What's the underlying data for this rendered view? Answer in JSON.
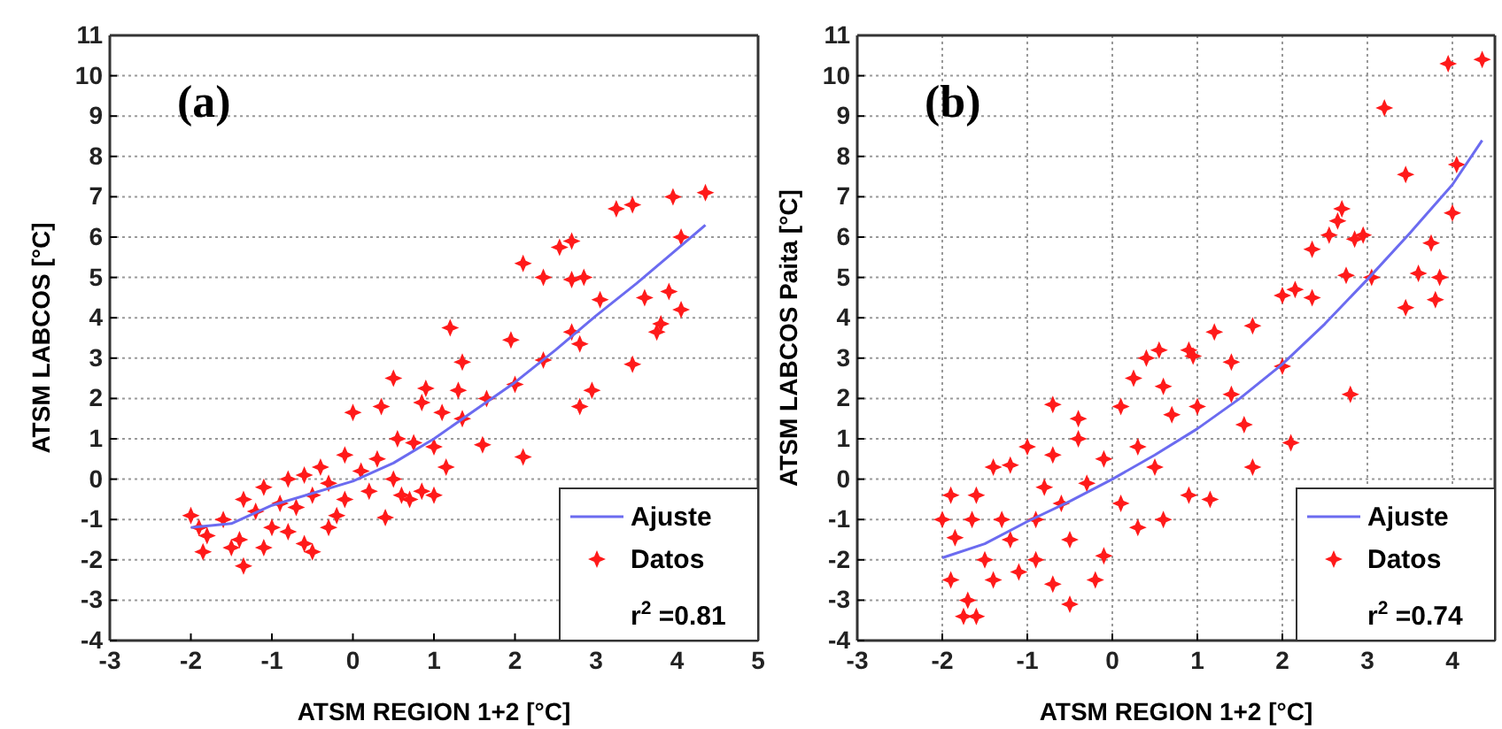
{
  "chart_data": [
    {
      "type": "scatter",
      "xlabel": "ATSM REGION 1+2 [°C]",
      "ylabel": "ATSM LABCOS [°C]",
      "annotations": [
        "(a)",
        "r$^{2}$ =0.81"
      ],
      "xlim": [
        -3,
        5
      ],
      "ylim": [
        -4,
        11
      ],
      "xticks": [
        -3,
        -2,
        -1,
        0,
        1,
        2,
        3,
        4,
        5
      ],
      "yticks": [
        -4,
        -3,
        -2,
        -1,
        0,
        1,
        2,
        3,
        4,
        5,
        6,
        7,
        8,
        9,
        10,
        11
      ],
      "grid": "y",
      "legend": "bottom right",
      "series": [
        {
          "name": "Ajuste",
          "type": "line",
          "color": "#6b6bf0",
          "line_style": "solid",
          "x": [
            -2,
            -1.5,
            -1,
            0,
            0.5,
            1,
            1.5,
            2,
            2.5,
            3,
            3.5,
            4,
            4.35
          ],
          "values": [
            -1.2,
            -1.1,
            -0.65,
            -0.05,
            0.4,
            1.0,
            1.7,
            2.4,
            3.2,
            4.05,
            4.85,
            5.7,
            6.3
          ]
        },
        {
          "name": "Datos",
          "marker": "star",
          "color": "#ff1a1a",
          "x": [
            4.35,
            3.95,
            3.45,
            3.25,
            4.05,
            2.7,
            2.55,
            2.1,
            2.35,
            2.7,
            2.85,
            3.05,
            3.6,
            3.9,
            4.05,
            3.8,
            3.75,
            2.7,
            2.8,
            1.95,
            3.45,
            2.35,
            1.2,
            1.35,
            2.0,
            2.95,
            2.8,
            1.65,
            1.3,
            0.5,
            0.9,
            0.0,
            0.35,
            0.85,
            1.1,
            1.35,
            1.6,
            2.1,
            1.15,
            1.0,
            0.85,
            0.7,
            0.4,
            0.55,
            0.75,
            1.0,
            0.3,
            0.1,
            -0.1,
            -0.3,
            -0.5,
            -0.7,
            -0.9,
            -1.0,
            -1.2,
            -1.35,
            -1.4,
            -1.35,
            -1.5,
            -1.6,
            -1.8,
            -1.85,
            -2.0,
            -1.9,
            -0.6,
            -0.5,
            -0.8,
            -0.2,
            -0.4,
            -0.6,
            -1.1,
            0.2,
            0.5,
            -0.8,
            -0.3,
            -1.1,
            0.6,
            -0.1
          ],
          "values": [
            7.1,
            7.0,
            6.8,
            6.7,
            6.0,
            5.9,
            5.75,
            5.35,
            5.0,
            4.95,
            5.0,
            4.45,
            4.5,
            4.65,
            4.2,
            3.85,
            3.65,
            3.65,
            3.35,
            3.45,
            2.85,
            2.95,
            3.75,
            2.9,
            2.35,
            2.2,
            1.8,
            2.0,
            2.2,
            2.5,
            2.25,
            1.65,
            1.8,
            1.9,
            1.65,
            1.5,
            0.85,
            0.55,
            0.3,
            -0.4,
            -0.3,
            -0.5,
            -0.95,
            1.0,
            0.9,
            0.8,
            0.5,
            0.2,
            0.6,
            -0.1,
            -0.4,
            -0.7,
            -0.6,
            -1.2,
            -0.8,
            -0.5,
            -1.5,
            -2.15,
            -1.7,
            -1.0,
            -1.4,
            -1.8,
            -0.9,
            -1.2,
            -1.6,
            -1.8,
            -1.3,
            -0.9,
            0.3,
            0.1,
            -0.2,
            -0.3,
            0.0,
            0.0,
            -1.2,
            -1.7,
            -0.4,
            -0.5
          ]
        }
      ]
    },
    {
      "type": "scatter",
      "xlabel": "ATSM REGION 1+2 [°C]",
      "ylabel": "ATSM LABCOS Paita [°C]",
      "annotations": [
        "(b)",
        "r$^{2}$ =0.74"
      ],
      "xlim": [
        -3,
        4.5
      ],
      "ylim": [
        -4,
        11
      ],
      "xticks": [
        -3,
        -2,
        -1,
        0,
        1,
        2,
        3,
        4
      ],
      "yticks": [
        -4,
        -3,
        -2,
        -1,
        0,
        1,
        2,
        3,
        4,
        5,
        6,
        7,
        8,
        9,
        10,
        11
      ],
      "grid": true,
      "legend": "bottom right",
      "series": [
        {
          "name": "Ajuste",
          "type": "line",
          "color": "#6b6bf0",
          "line_style": "solid",
          "x": [
            -2,
            -1.5,
            -1,
            -0.5,
            0,
            0.5,
            1,
            1.5,
            2,
            2.5,
            3,
            3.5,
            4,
            4.35
          ],
          "values": [
            -1.95,
            -1.6,
            -1.05,
            -0.55,
            0,
            0.6,
            1.25,
            2.0,
            2.85,
            3.85,
            4.95,
            6.1,
            7.3,
            8.4
          ]
        },
        {
          "name": "Datos",
          "marker": "star",
          "color": "#ff1a1a",
          "x": [
            4.35,
            3.95,
            3.2,
            4.05,
            3.45,
            4.0,
            2.7,
            2.65,
            2.55,
            2.85,
            2.95,
            3.75,
            2.35,
            2.75,
            3.05,
            3.6,
            3.85,
            2.0,
            2.15,
            2.35,
            3.45,
            3.8,
            1.65,
            1.2,
            0.4,
            0.55,
            0.9,
            0.95,
            1.4,
            2.0,
            0.25,
            2.8,
            0.6,
            1.4,
            -0.7,
            0.1,
            -0.4,
            0.7,
            1.0,
            1.55,
            2.1,
            1.65,
            1.15,
            0.3,
            0.5,
            -0.1,
            -0.3,
            -0.6,
            -0.9,
            -1.2,
            -1.4,
            -1.2,
            -1.6,
            -1.9,
            -2.0,
            -1.65,
            -1.85,
            -1.9,
            -1.7,
            -1.6,
            -1.75,
            -1.4,
            -1.1,
            -0.7,
            -0.5,
            -0.2,
            -0.1,
            0.3,
            0.1,
            -0.8,
            -1.0,
            -0.4,
            -0.7,
            -1.3,
            -0.5,
            0.6,
            0.9,
            -0.9,
            -1.5
          ],
          "values": [
            10.4,
            10.3,
            9.2,
            7.8,
            7.55,
            6.6,
            6.7,
            6.4,
            6.05,
            5.95,
            6.05,
            5.85,
            5.7,
            5.05,
            5.0,
            5.1,
            5.0,
            4.55,
            4.7,
            4.5,
            4.25,
            4.45,
            3.8,
            3.65,
            3.0,
            3.2,
            3.2,
            3.05,
            2.9,
            2.8,
            2.5,
            2.1,
            2.3,
            2.1,
            1.85,
            1.8,
            1.5,
            1.6,
            1.8,
            1.35,
            0.9,
            0.3,
            -0.5,
            0.8,
            0.3,
            0.5,
            -0.1,
            -0.6,
            -1.0,
            -1.5,
            0.3,
            0.35,
            -0.4,
            -0.4,
            -1.0,
            -1.0,
            -1.45,
            -2.5,
            -3.0,
            -3.4,
            -3.4,
            -2.5,
            -2.3,
            -2.6,
            -3.1,
            -2.5,
            -1.9,
            -1.2,
            -0.6,
            -0.2,
            0.8,
            1.0,
            0.6,
            -1.0,
            -1.5,
            -1.0,
            -0.4,
            -2.0,
            -2.0
          ]
        }
      ]
    }
  ]
}
